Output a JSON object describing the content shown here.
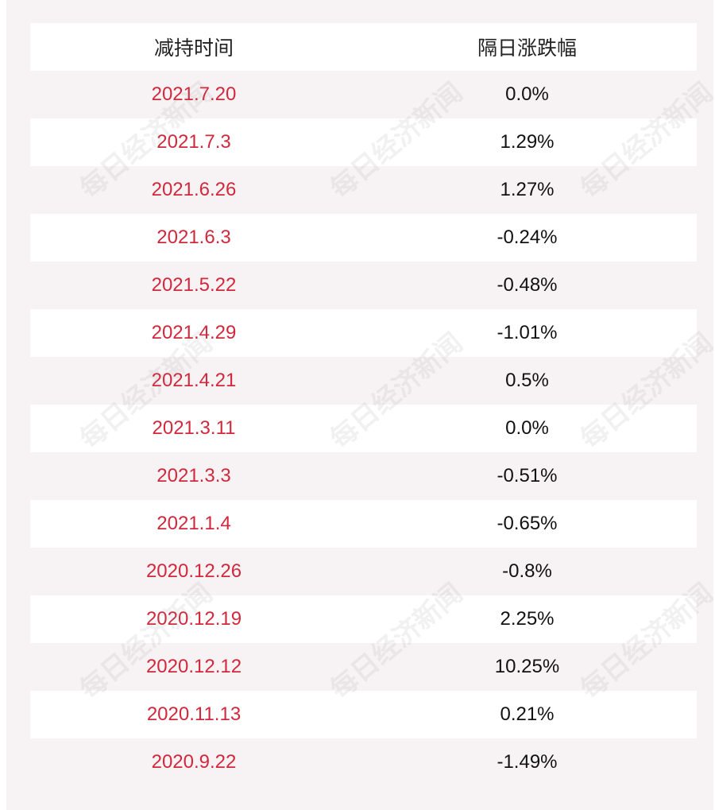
{
  "table": {
    "header": {
      "col_date": "减持时间",
      "col_change": "隔日涨跌幅"
    },
    "rows": [
      {
        "date": "2021.7.20",
        "change": "0.0%"
      },
      {
        "date": "2021.7.3",
        "change": "1.29%"
      },
      {
        "date": "2021.6.26",
        "change": "1.27%"
      },
      {
        "date": "2021.6.3",
        "change": "-0.24%"
      },
      {
        "date": "2021.5.22",
        "change": "-0.48%"
      },
      {
        "date": "2021.4.29",
        "change": "-1.01%"
      },
      {
        "date": "2021.4.21",
        "change": "0.5%"
      },
      {
        "date": "2021.3.11",
        "change": "0.0%"
      },
      {
        "date": "2021.3.3",
        "change": "-0.51%"
      },
      {
        "date": "2021.1.4",
        "change": "-0.65%"
      },
      {
        "date": "2020.12.26",
        "change": "-0.8%"
      },
      {
        "date": "2020.12.19",
        "change": "2.25%"
      },
      {
        "date": "2020.12.12",
        "change": "10.25%"
      },
      {
        "date": "2020.11.13",
        "change": "0.21%"
      },
      {
        "date": "2020.9.22",
        "change": "-1.49%"
      }
    ]
  },
  "watermark": {
    "text": "每日经济新闻"
  },
  "colors": {
    "date_text": "#d2283c",
    "change_text": "#111111",
    "stripe": "#f7f3f4"
  }
}
